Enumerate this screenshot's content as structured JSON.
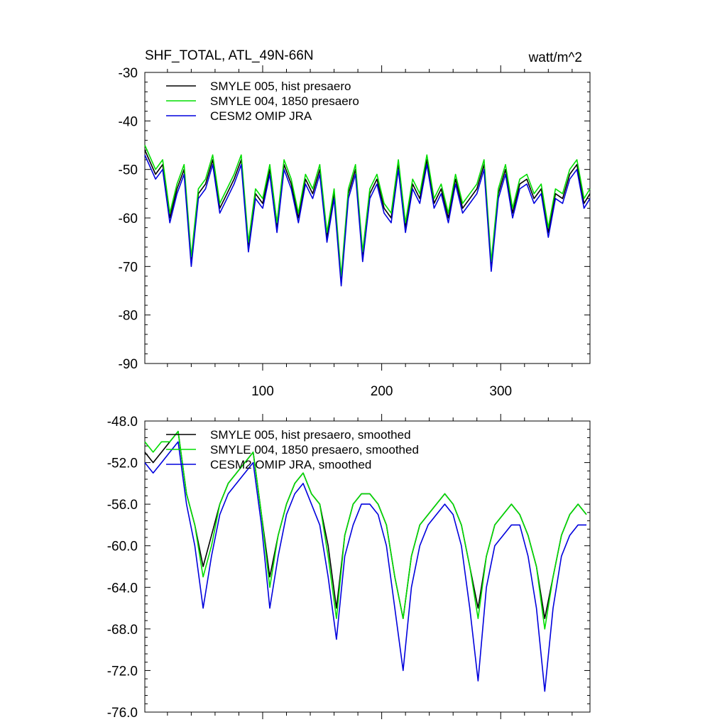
{
  "chart_data": [
    {
      "type": "line",
      "title": "SHF_TOTAL, ATL_49N-66N",
      "units": "watt/m^2",
      "xlim": [
        1,
        375
      ],
      "ylim": [
        -90,
        -30
      ],
      "yticks": [
        -30,
        -40,
        -50,
        -60,
        -70,
        -80,
        -90
      ],
      "ytick_labels": [
        "-30",
        "-40",
        "-50",
        "-60",
        "-70",
        "-80",
        "-90"
      ],
      "xticks": [
        100,
        200,
        300
      ],
      "xtick_labels": [
        "100",
        "200",
        "300"
      ],
      "legend": [
        "SMYLE 005, hist presaero",
        "SMYLE 004, 1850 presaero",
        "CESM2 OMIP JRA"
      ],
      "colors": [
        "#000000",
        "#00dd00",
        "#0000dd"
      ],
      "x": [
        1,
        10,
        16,
        22,
        28,
        34,
        40,
        46,
        52,
        58,
        64,
        70,
        76,
        82,
        88,
        94,
        100,
        106,
        112,
        118,
        124,
        130,
        136,
        142,
        148,
        154,
        160,
        166,
        172,
        178,
        184,
        190,
        196,
        202,
        208,
        214,
        220,
        226,
        232,
        238,
        244,
        250,
        256,
        262,
        268,
        274,
        280,
        286,
        292,
        298,
        304,
        310,
        316,
        322,
        328,
        334,
        340,
        346,
        352,
        358,
        364,
        370,
        375
      ],
      "series": [
        {
          "name": "SMYLE 005, hist presaero",
          "values": [
            -46,
            -51,
            -49,
            -60,
            -54,
            -50,
            -69,
            -55,
            -53,
            -48,
            -58,
            -55,
            -52,
            -48,
            -66,
            -55,
            -57,
            -50,
            -62,
            -49,
            -53,
            -60,
            -52,
            -55,
            -50,
            -64,
            -55,
            -73,
            -55,
            -50,
            -68,
            -55,
            -52,
            -58,
            -60,
            -49,
            -62,
            -53,
            -56,
            -48,
            -57,
            -54,
            -60,
            -52,
            -58,
            -56,
            -54,
            -49,
            -70,
            -55,
            -50,
            -59,
            -53,
            -52,
            -56,
            -54,
            -63,
            -55,
            -56,
            -51,
            -49,
            -57,
            -55
          ]
        },
        {
          "name": "SMYLE 004, 1850 presaero",
          "values": [
            -45,
            -50,
            -48,
            -59,
            -53,
            -49,
            -68,
            -54,
            -52,
            -47,
            -57,
            -54,
            -51,
            -47,
            -65,
            -54,
            -56,
            -49,
            -61,
            -48,
            -52,
            -59,
            -51,
            -54,
            -49,
            -63,
            -54,
            -72,
            -54,
            -49,
            -67,
            -54,
            -51,
            -57,
            -59,
            -48,
            -61,
            -52,
            -55,
            -47,
            -56,
            -53,
            -59,
            -51,
            -57,
            -55,
            -53,
            -48,
            -69,
            -54,
            -49,
            -58,
            -52,
            -51,
            -55,
            -53,
            -62,
            -54,
            -55,
            -50,
            -48,
            -56,
            -54
          ]
        },
        {
          "name": "CESM2 OMIP JRA",
          "values": [
            -47,
            -52,
            -50,
            -61,
            -55,
            -51,
            -70,
            -56,
            -54,
            -49,
            -59,
            -56,
            -53,
            -49,
            -67,
            -56,
            -58,
            -51,
            -63,
            -50,
            -54,
            -61,
            -53,
            -56,
            -51,
            -65,
            -56,
            -74,
            -56,
            -51,
            -69,
            -56,
            -53,
            -59,
            -61,
            -50,
            -63,
            -54,
            -57,
            -49,
            -58,
            -55,
            -61,
            -53,
            -59,
            -57,
            -55,
            -50,
            -71,
            -56,
            -51,
            -60,
            -54,
            -53,
            -57,
            -55,
            -64,
            -56,
            -57,
            -52,
            -50,
            -58,
            -56
          ]
        }
      ]
    },
    {
      "type": "line",
      "ylim": [
        -76,
        -48
      ],
      "xlim": [
        1,
        375
      ],
      "yticks": [
        -48,
        -52,
        -56,
        -60,
        -64,
        -68,
        -72,
        -76
      ],
      "ytick_labels": [
        "-48.0",
        "-52.0",
        "-56.0",
        "-60.0",
        "-64.0",
        "-68.0",
        "-72.0",
        "-76.0"
      ],
      "xticks": [
        100,
        200,
        300
      ],
      "legend": [
        "SMYLE 005, hist presaero, smoothed",
        "SMYLE 004, 1850 presaero, smoothed",
        "CESM2 OMIP JRA, smoothed"
      ],
      "colors": [
        "#000000",
        "#00dd00",
        "#0000dd"
      ],
      "x": [
        1,
        8,
        15,
        22,
        29,
        36,
        43,
        50,
        57,
        64,
        71,
        78,
        85,
        92,
        99,
        106,
        113,
        120,
        127,
        134,
        141,
        148,
        155,
        162,
        169,
        176,
        183,
        190,
        197,
        204,
        211,
        218,
        225,
        232,
        239,
        246,
        253,
        260,
        267,
        274,
        281,
        288,
        295,
        302,
        309,
        316,
        323,
        330,
        337,
        344,
        351,
        358,
        365,
        372
      ],
      "series": [
        {
          "name": "SMYLE 005, hist presaero, smoothed",
          "values": [
            -51,
            -52,
            -51,
            -50,
            -49,
            -55,
            -58,
            -62,
            -59,
            -56,
            -54,
            -53,
            -52,
            -51,
            -57,
            -63,
            -59,
            -56,
            -54,
            -53,
            -55,
            -56,
            -60,
            -66,
            -59,
            -56,
            -55,
            -55,
            -56,
            -58,
            -63,
            -67,
            -61,
            -58,
            -57,
            -56,
            -55,
            -56,
            -58,
            -62,
            -66,
            -61,
            -58,
            -57,
            -56,
            -57,
            -59,
            -62,
            -67,
            -63,
            -59,
            -57,
            -56,
            -57
          ]
        },
        {
          "name": "SMYLE 004, 1850 presaero, smoothed",
          "values": [
            -50,
            -51,
            -50,
            -50,
            -49,
            -55,
            -58,
            -63,
            -60,
            -56,
            -54,
            -53,
            -52,
            -51,
            -57,
            -64,
            -59,
            -56,
            -54,
            -53,
            -55,
            -56,
            -61,
            -67,
            -59,
            -56,
            -55,
            -55,
            -56,
            -58,
            -63,
            -67,
            -61,
            -58,
            -57,
            -56,
            -55,
            -56,
            -58,
            -62,
            -67,
            -61,
            -58,
            -57,
            -56,
            -57,
            -59,
            -62,
            -68,
            -63,
            -59,
            -57,
            -56,
            -57
          ]
        },
        {
          "name": "CESM2 OMIP JRA, smoothed",
          "values": [
            -52,
            -53,
            -52,
            -51,
            -50,
            -56,
            -60,
            -66,
            -61,
            -57,
            -55,
            -54,
            -53,
            -52,
            -58,
            -66,
            -61,
            -57,
            -55,
            -54,
            -56,
            -58,
            -63,
            -69,
            -61,
            -58,
            -56,
            -56,
            -57,
            -60,
            -66,
            -72,
            -64,
            -60,
            -58,
            -57,
            -56,
            -57,
            -60,
            -66,
            -73,
            -64,
            -60,
            -59,
            -58,
            -58,
            -61,
            -66,
            -74,
            -66,
            -61,
            -59,
            -58,
            -58
          ]
        }
      ]
    }
  ]
}
